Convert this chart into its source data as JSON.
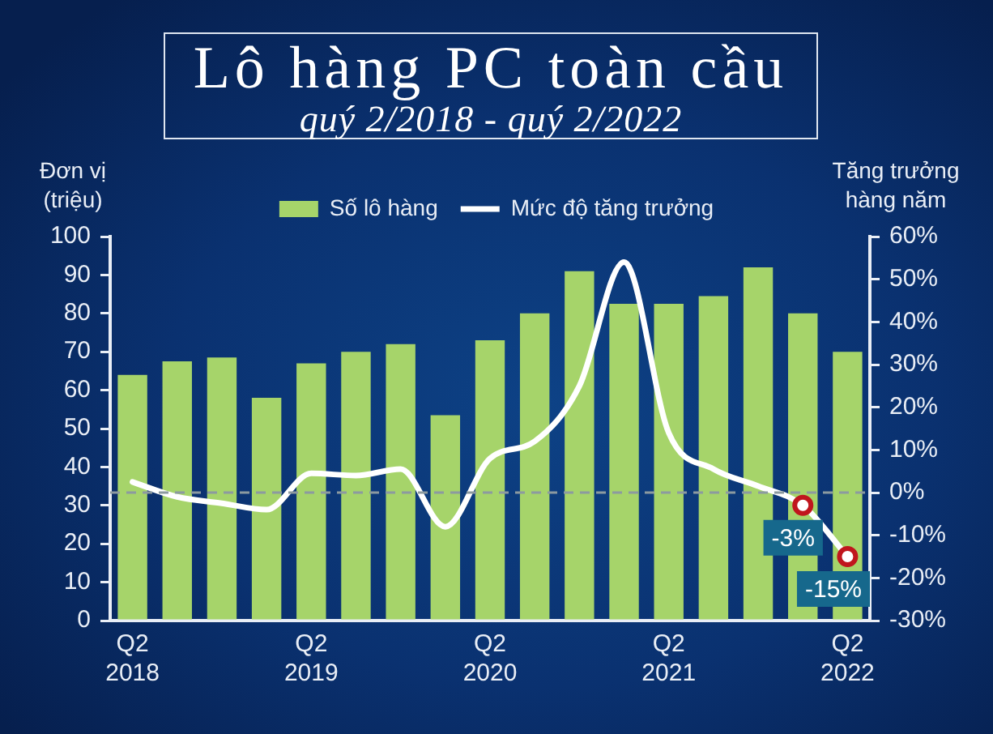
{
  "chart_data": {
    "type": "bar",
    "title": "Lô hàng PC toàn cầu",
    "subtitle": "quý 2/2018 - quý 2/2022",
    "ylabel": "Đơn vị\n(triệu)",
    "y2label": "Tăng trưởng\nhàng năm",
    "categories": [
      "Q2\n2018",
      null,
      null,
      null,
      "Q2\n2019",
      null,
      null,
      null,
      "Q2\n2020",
      null,
      null,
      null,
      "Q2\n2021",
      null,
      null,
      null,
      "Q2\n2022"
    ],
    "series": [
      {
        "name": "Số lô hàng",
        "type": "bar",
        "color": "#a6d46a",
        "values": [
          64,
          67.5,
          68.5,
          58,
          67,
          70,
          72,
          53.5,
          73,
          80,
          91,
          82.5,
          82.5,
          84.5,
          92,
          80,
          70
        ]
      },
      {
        "name": "Mức độ tăng trưởng",
        "type": "line",
        "axis": "y2",
        "color": "#ffffff",
        "values": [
          2.5,
          -1,
          -2.5,
          -4,
          4.5,
          4,
          5.5,
          -8,
          8,
          12,
          25,
          54,
          14,
          5.5,
          1.5,
          -3,
          -15
        ],
        "value_labels": [
          null,
          null,
          null,
          null,
          null,
          null,
          null,
          null,
          null,
          null,
          null,
          null,
          null,
          null,
          null,
          "-3%",
          "-15%"
        ]
      }
    ],
    "ylim": [
      0,
      100
    ],
    "yticks": [
      0,
      10,
      20,
      30,
      40,
      50,
      60,
      70,
      80,
      90,
      100
    ],
    "y2lim": [
      -30,
      60
    ],
    "y2ticks": [
      {
        "value": -30,
        "label": "-30%"
      },
      {
        "value": -20,
        "label": "-20%"
      },
      {
        "value": -10,
        "label": "-10%"
      },
      {
        "value": 0,
        "label": "0%"
      },
      {
        "value": 10,
        "label": "10%"
      },
      {
        "value": 20,
        "label": "20%"
      },
      {
        "value": 30,
        "label": "30%"
      },
      {
        "value": 40,
        "label": "40%"
      },
      {
        "value": 50,
        "label": "50%"
      },
      {
        "value": 60,
        "label": "60%"
      }
    ],
    "ref_lines": [
      {
        "axis": "y2",
        "value": 0,
        "color": "#8c9aa0",
        "line_style": "dashed"
      }
    ],
    "legend": "top",
    "grid": false
  }
}
